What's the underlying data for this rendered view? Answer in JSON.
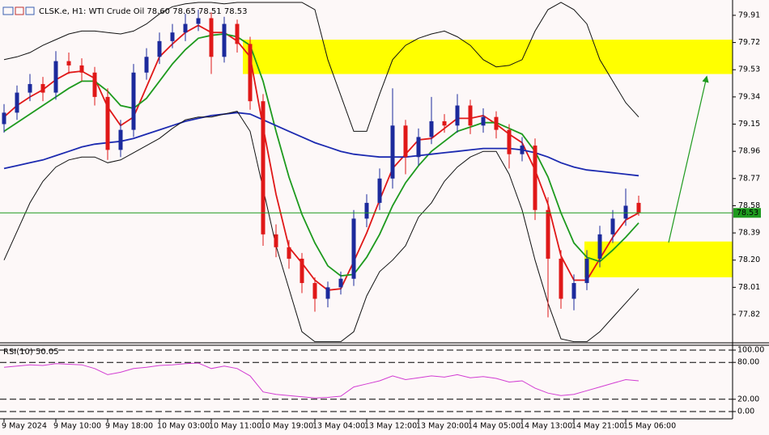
{
  "chart_data": [
    {
      "type": "candlestick",
      "title": "CLSK.e, H1: WTI Crude Oil 78.60 78.65 78.51 78.53",
      "categories": [
        "9 May 2024",
        null,
        null,
        null,
        "9 May 10:00",
        null,
        null,
        null,
        "9 May 18:00",
        null,
        null,
        null,
        "10 May 03:00",
        null,
        null,
        null,
        "10 May 11:00",
        null,
        null,
        null,
        "10 May 19:00",
        null,
        null,
        null,
        "13 May 04:00",
        null,
        null,
        null,
        "13 May 12:00",
        null,
        null,
        null,
        "13 May 20:00",
        null,
        null,
        null,
        "14 May 05:00",
        null,
        null,
        null,
        "14 May 13:00",
        null,
        null,
        null,
        "14 May 21:00",
        null,
        null,
        null,
        "15 May 06:00",
        null
      ],
      "open": [
        79.15,
        79.23,
        79.37,
        79.43,
        79.37,
        79.59,
        79.56,
        79.51,
        79.34,
        78.97,
        79.11,
        79.51,
        79.62,
        79.73,
        79.79,
        79.85,
        79.89,
        79.62,
        79.85,
        79.71,
        79.31,
        78.38,
        78.29,
        78.21,
        78.04,
        77.93,
        78.01,
        78.07,
        78.49,
        78.6,
        78.77,
        79.14,
        78.92,
        79.06,
        79.17,
        79.14,
        79.28,
        79.14,
        79.2,
        79.11,
        78.94,
        79.0,
        78.55,
        78.21,
        77.93,
        78.04,
        78.21,
        78.38,
        78.49,
        78.6
      ],
      "high": [
        79.29,
        79.42,
        79.5,
        79.48,
        79.66,
        79.65,
        79.61,
        79.55,
        79.4,
        79.18,
        79.57,
        79.68,
        79.79,
        79.85,
        79.92,
        79.95,
        79.93,
        79.9,
        79.88,
        79.76,
        79.36,
        78.45,
        78.34,
        78.25,
        78.08,
        78.05,
        78.12,
        78.55,
        78.66,
        78.84,
        79.4,
        79.18,
        79.12,
        79.34,
        79.22,
        79.36,
        79.32,
        79.26,
        79.24,
        79.15,
        79.06,
        79.05,
        78.64,
        78.27,
        78.1,
        78.27,
        78.44,
        78.55,
        78.7,
        78.65
      ],
      "low": [
        79.09,
        79.18,
        79.31,
        79.31,
        79.32,
        79.5,
        79.45,
        79.28,
        78.9,
        78.92,
        79.06,
        79.46,
        79.57,
        79.68,
        79.73,
        79.8,
        79.5,
        79.58,
        79.65,
        79.25,
        78.3,
        78.22,
        78.14,
        77.97,
        77.84,
        77.87,
        77.96,
        78.02,
        78.43,
        78.55,
        78.7,
        78.8,
        78.86,
        79.01,
        79.09,
        79.09,
        79.08,
        79.09,
        79.05,
        78.84,
        78.89,
        78.48,
        77.8,
        77.86,
        77.85,
        77.99,
        78.15,
        78.32,
        78.44,
        78.51
      ],
      "close": [
        79.23,
        79.37,
        79.43,
        79.37,
        79.59,
        79.56,
        79.51,
        79.34,
        78.97,
        79.11,
        79.51,
        79.62,
        79.73,
        79.79,
        79.85,
        79.89,
        79.62,
        79.85,
        79.71,
        79.31,
        78.38,
        78.29,
        78.21,
        78.04,
        77.93,
        78.01,
        78.07,
        78.49,
        78.6,
        78.77,
        79.14,
        78.92,
        79.06,
        79.17,
        79.14,
        79.28,
        79.14,
        79.2,
        79.11,
        78.94,
        79.0,
        78.55,
        78.21,
        77.93,
        78.04,
        78.21,
        78.38,
        78.49,
        78.58,
        78.53
      ],
      "up_color": "#1c2a9c",
      "down_color": "#e01818",
      "series": [
        {
          "color": "#e01818",
          "values": [
            79.2,
            79.28,
            79.34,
            79.39,
            79.46,
            79.51,
            79.52,
            79.47,
            79.27,
            79.14,
            79.2,
            79.41,
            79.62,
            79.71,
            79.79,
            79.84,
            79.79,
            79.79,
            79.73,
            79.62,
            79.13,
            78.66,
            78.29,
            78.18,
            78.06,
            77.99,
            78.0,
            78.19,
            78.39,
            78.62,
            78.84,
            78.94,
            79.04,
            79.05,
            79.12,
            79.19,
            79.19,
            79.21,
            79.15,
            79.08,
            79.02,
            78.83,
            78.59,
            78.23,
            78.06,
            78.06,
            78.21,
            78.36,
            78.48,
            78.53
          ]
        },
        {
          "color": "#1e9a1e",
          "values": [
            79.1,
            79.16,
            79.22,
            79.28,
            79.34,
            79.4,
            79.45,
            79.45,
            79.38,
            79.28,
            79.26,
            79.33,
            79.45,
            79.57,
            79.67,
            79.75,
            79.77,
            79.78,
            79.76,
            79.7,
            79.45,
            79.1,
            78.78,
            78.52,
            78.32,
            78.16,
            78.09,
            78.1,
            78.22,
            78.38,
            78.58,
            78.74,
            78.86,
            78.96,
            79.03,
            79.1,
            79.13,
            79.16,
            79.16,
            79.12,
            79.08,
            78.96,
            78.78,
            78.53,
            78.32,
            78.22,
            78.19,
            78.27,
            78.36,
            78.46
          ]
        },
        {
          "color": "#1c2ab0",
          "values": [
            78.84,
            78.86,
            78.88,
            78.9,
            78.93,
            78.96,
            78.99,
            79.01,
            79.02,
            79.03,
            79.05,
            79.08,
            79.11,
            79.14,
            79.17,
            79.19,
            79.21,
            79.22,
            79.23,
            79.22,
            79.18,
            79.14,
            79.1,
            79.06,
            79.02,
            78.99,
            78.96,
            78.94,
            78.93,
            78.92,
            78.92,
            78.92,
            78.93,
            78.94,
            78.95,
            78.96,
            78.97,
            78.98,
            78.98,
            78.98,
            78.97,
            78.95,
            78.92,
            78.88,
            78.85,
            78.83,
            78.82,
            78.81,
            78.8,
            78.79
          ]
        },
        {
          "color": "#111111",
          "values": [
            79.6,
            79.62,
            79.65,
            79.7,
            79.74,
            79.78,
            79.8,
            79.8,
            79.79,
            79.78,
            79.8,
            79.85,
            79.92,
            79.97,
            79.99,
            80.0,
            80.0,
            79.99,
            80.0,
            80.0,
            80.0,
            80.0,
            80.0,
            80.0,
            79.95,
            79.6,
            79.35,
            79.1,
            79.1,
            79.36,
            79.6,
            79.7,
            79.75,
            79.78,
            79.8,
            79.76,
            79.7,
            79.6,
            79.55,
            79.56,
            79.6,
            79.8,
            79.95,
            80.0,
            79.95,
            79.85,
            79.6,
            79.45,
            79.3,
            79.2
          ]
        },
        {
          "color": "#111111",
          "values": [
            78.2,
            78.4,
            78.6,
            78.75,
            78.85,
            78.9,
            78.92,
            78.92,
            78.88,
            78.9,
            78.95,
            79.0,
            79.05,
            79.12,
            79.18,
            79.2,
            79.2,
            79.22,
            79.24,
            79.1,
            78.7,
            78.3,
            78.0,
            77.7,
            77.63,
            77.63,
            77.63,
            77.7,
            77.95,
            78.12,
            78.2,
            78.3,
            78.5,
            78.6,
            78.75,
            78.85,
            78.92,
            78.96,
            78.96,
            78.8,
            78.55,
            78.2,
            77.9,
            77.65,
            77.63,
            77.63,
            77.7,
            77.8,
            77.9,
            78.0
          ]
        }
      ],
      "zones": [
        {
          "top": 79.74,
          "bottom": 79.5,
          "color": "#ffff00"
        },
        {
          "top": 78.33,
          "bottom": 78.08,
          "color": "#ffff00"
        }
      ],
      "last_price": 78.53,
      "last_price_color": "#1e9a1e",
      "ylim": [
        77.628,
        80.017
      ],
      "yticks": [
        79.91,
        79.72,
        79.53,
        79.34,
        79.15,
        78.96,
        78.77,
        78.58,
        78.39,
        {
          "value": 78.2,
          "label": "78.20"
        },
        78.01,
        77.82
      ]
    },
    {
      "type": "line",
      "title": "RSI(10) 50.05",
      "color": "#d23cd2",
      "values": [
        72,
        74,
        76,
        75,
        78,
        77,
        76,
        70,
        60,
        64,
        70,
        72,
        75,
        76,
        78,
        79,
        70,
        74,
        70,
        58,
        32,
        28,
        26,
        24,
        22,
        23,
        25,
        40,
        45,
        50,
        58,
        52,
        55,
        58,
        56,
        60,
        55,
        57,
        54,
        48,
        50,
        38,
        30,
        26,
        28,
        34,
        40,
        46,
        52,
        50.05
      ],
      "ylim": [
        0,
        100
      ],
      "yticks": [
        {
          "value": 100,
          "label": "100.00"
        },
        {
          "value": 80,
          "label": "80.00"
        },
        {
          "value": 20,
          "label": "20.00"
        },
        {
          "value": 0,
          "label": "0.00"
        }
      ]
    }
  ]
}
